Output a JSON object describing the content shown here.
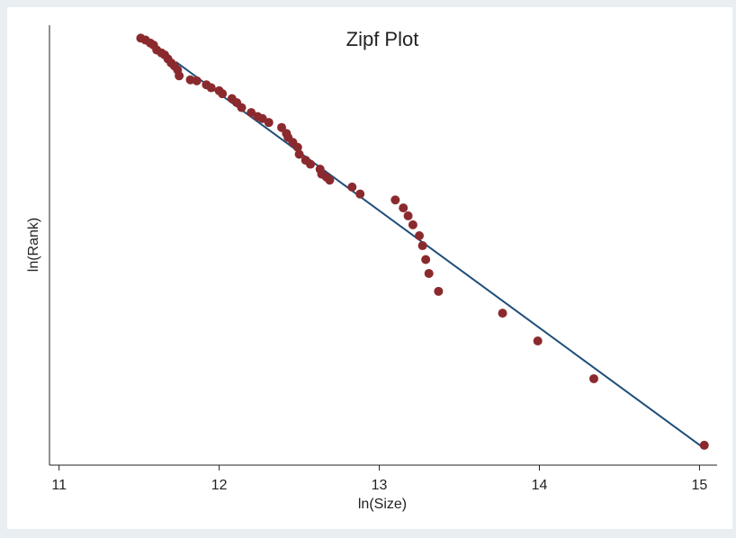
{
  "chart_data": {
    "type": "scatter",
    "title": "Zipf Plot",
    "x_label": "ln(Size)",
    "y_label": "ln(Rank)",
    "x": [
      11.51,
      11.54,
      11.57,
      11.59,
      11.61,
      11.64,
      11.66,
      11.68,
      11.7,
      11.72,
      11.74,
      11.75,
      11.82,
      11.86,
      11.92,
      11.95,
      12.0,
      12.02,
      12.08,
      12.11,
      12.14,
      12.2,
      12.24,
      12.27,
      12.31,
      12.39,
      12.42,
      12.43,
      12.46,
      12.49,
      12.5,
      12.54,
      12.57,
      12.63,
      12.64,
      12.67,
      12.69,
      12.83,
      12.88,
      13.1,
      13.15,
      13.18,
      13.21,
      13.25,
      13.27,
      13.29,
      13.31,
      13.37,
      13.77,
      13.99,
      14.34,
      15.03
    ],
    "values": [
      4.1,
      4.08,
      4.05,
      4.03,
      3.98,
      3.95,
      3.93,
      3.89,
      3.85,
      3.82,
      3.78,
      3.72,
      3.68,
      3.67,
      3.63,
      3.6,
      3.57,
      3.54,
      3.49,
      3.45,
      3.4,
      3.35,
      3.31,
      3.29,
      3.25,
      3.2,
      3.14,
      3.1,
      3.05,
      3.0,
      2.93,
      2.87,
      2.83,
      2.78,
      2.73,
      2.7,
      2.67,
      2.6,
      2.53,
      2.47,
      2.39,
      2.31,
      2.22,
      2.11,
      2.01,
      1.87,
      1.73,
      1.55,
      1.33,
      1.05,
      0.67,
      0
    ],
    "color": "#8b2a2e",
    "fit_line": {
      "x": [
        11.73,
        15.02
      ],
      "values": [
        3.86,
        -0.02
      ],
      "color": "#1f4e79"
    },
    "xlim": [
      10.94,
      15.11
    ],
    "ylim": [
      -0.2,
      4.23
    ],
    "xticks": [
      11,
      12,
      13,
      14,
      15
    ]
  }
}
